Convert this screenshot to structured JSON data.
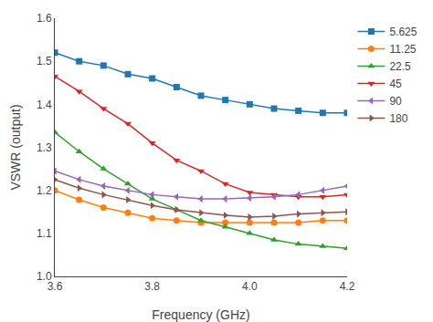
{
  "chart_data": {
    "type": "line",
    "xlabel": "Frequency (GHz)",
    "ylabel": "VSWR (output)",
    "x": [
      3.6,
      3.65,
      3.7,
      3.75,
      3.8,
      3.85,
      3.9,
      3.95,
      4.0,
      4.05,
      4.1,
      4.15,
      4.2
    ],
    "series": [
      {
        "name": "5.625",
        "marker": "square",
        "values": [
          1.52,
          1.5,
          1.49,
          1.47,
          1.46,
          1.44,
          1.42,
          1.41,
          1.4,
          1.39,
          1.385,
          1.38,
          1.38
        ]
      },
      {
        "name": "11.25",
        "marker": "circle",
        "values": [
          1.2,
          1.178,
          1.16,
          1.148,
          1.135,
          1.13,
          1.125,
          1.125,
          1.125,
          1.125,
          1.125,
          1.13,
          1.13
        ]
      },
      {
        "name": "22.5",
        "marker": "triangle-up",
        "values": [
          1.335,
          1.29,
          1.25,
          1.215,
          1.18,
          1.155,
          1.13,
          1.115,
          1.1,
          1.085,
          1.075,
          1.07,
          1.065
        ]
      },
      {
        "name": "45",
        "marker": "triangle-down",
        "values": [
          1.465,
          1.43,
          1.39,
          1.355,
          1.31,
          1.27,
          1.245,
          1.215,
          1.195,
          1.19,
          1.185,
          1.185,
          1.19
        ]
      },
      {
        "name": "90",
        "marker": "triangle-left",
        "values": [
          1.245,
          1.225,
          1.21,
          1.2,
          1.19,
          1.185,
          1.18,
          1.18,
          1.182,
          1.185,
          1.19,
          1.2,
          1.21
        ]
      },
      {
        "name": "180",
        "marker": "triangle-right",
        "values": [
          1.225,
          1.205,
          1.19,
          1.178,
          1.165,
          1.155,
          1.148,
          1.142,
          1.138,
          1.14,
          1.145,
          1.148,
          1.15
        ]
      }
    ],
    "xlim": [
      3.6,
      4.2
    ],
    "ylim": [
      1.0,
      1.6
    ],
    "xticks": [
      3.6,
      3.8,
      {
        "value": 4.0,
        "label": "4.0"
      },
      4.2
    ],
    "yticks": [
      {
        "value": 1.0,
        "label": "1.0"
      },
      1.1,
      1.2,
      1.3,
      1.4,
      1.5,
      1.6
    ],
    "grid": false,
    "legend": "upper right"
  }
}
